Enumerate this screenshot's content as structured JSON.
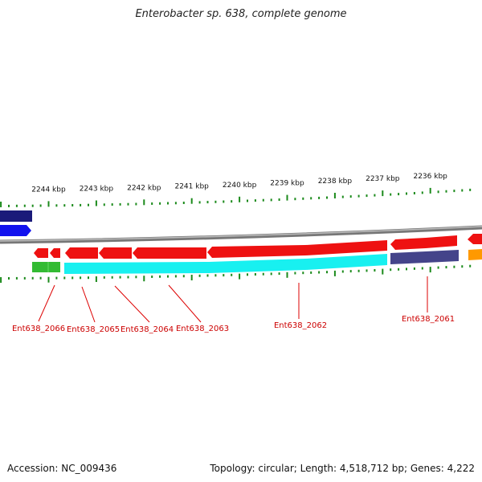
{
  "title": "Enterobacter sp. 638, complete genome",
  "footer": {
    "accession": "Accession: NC_009436",
    "topology": "Topology: circular; Length: 4,518,712 bp; Genes: 4,222"
  },
  "colors": {
    "backbone": "#888888",
    "tick": "#1b8a1b",
    "gene_red": "#ee1111",
    "label_red": "#cc0000",
    "cyan": "#18f0f0",
    "green": "#33bb33",
    "navy": "#1a1a7a",
    "blue": "#1111ee",
    "purple": "#44448a",
    "orange": "#ff9900"
  },
  "scale_labels": [
    "2244 kbp",
    "2243 kbp",
    "2242 kbp",
    "2241 kbp",
    "2240 kbp",
    "2239 kbp",
    "2238 kbp",
    "2237 kbp",
    "2236 kbp"
  ],
  "gene_labels": [
    "Ent638_2066",
    "Ent638_2065",
    "Ent638_2064",
    "Ent638_2063",
    "Ent638_2062",
    "Ent638_2061"
  ]
}
